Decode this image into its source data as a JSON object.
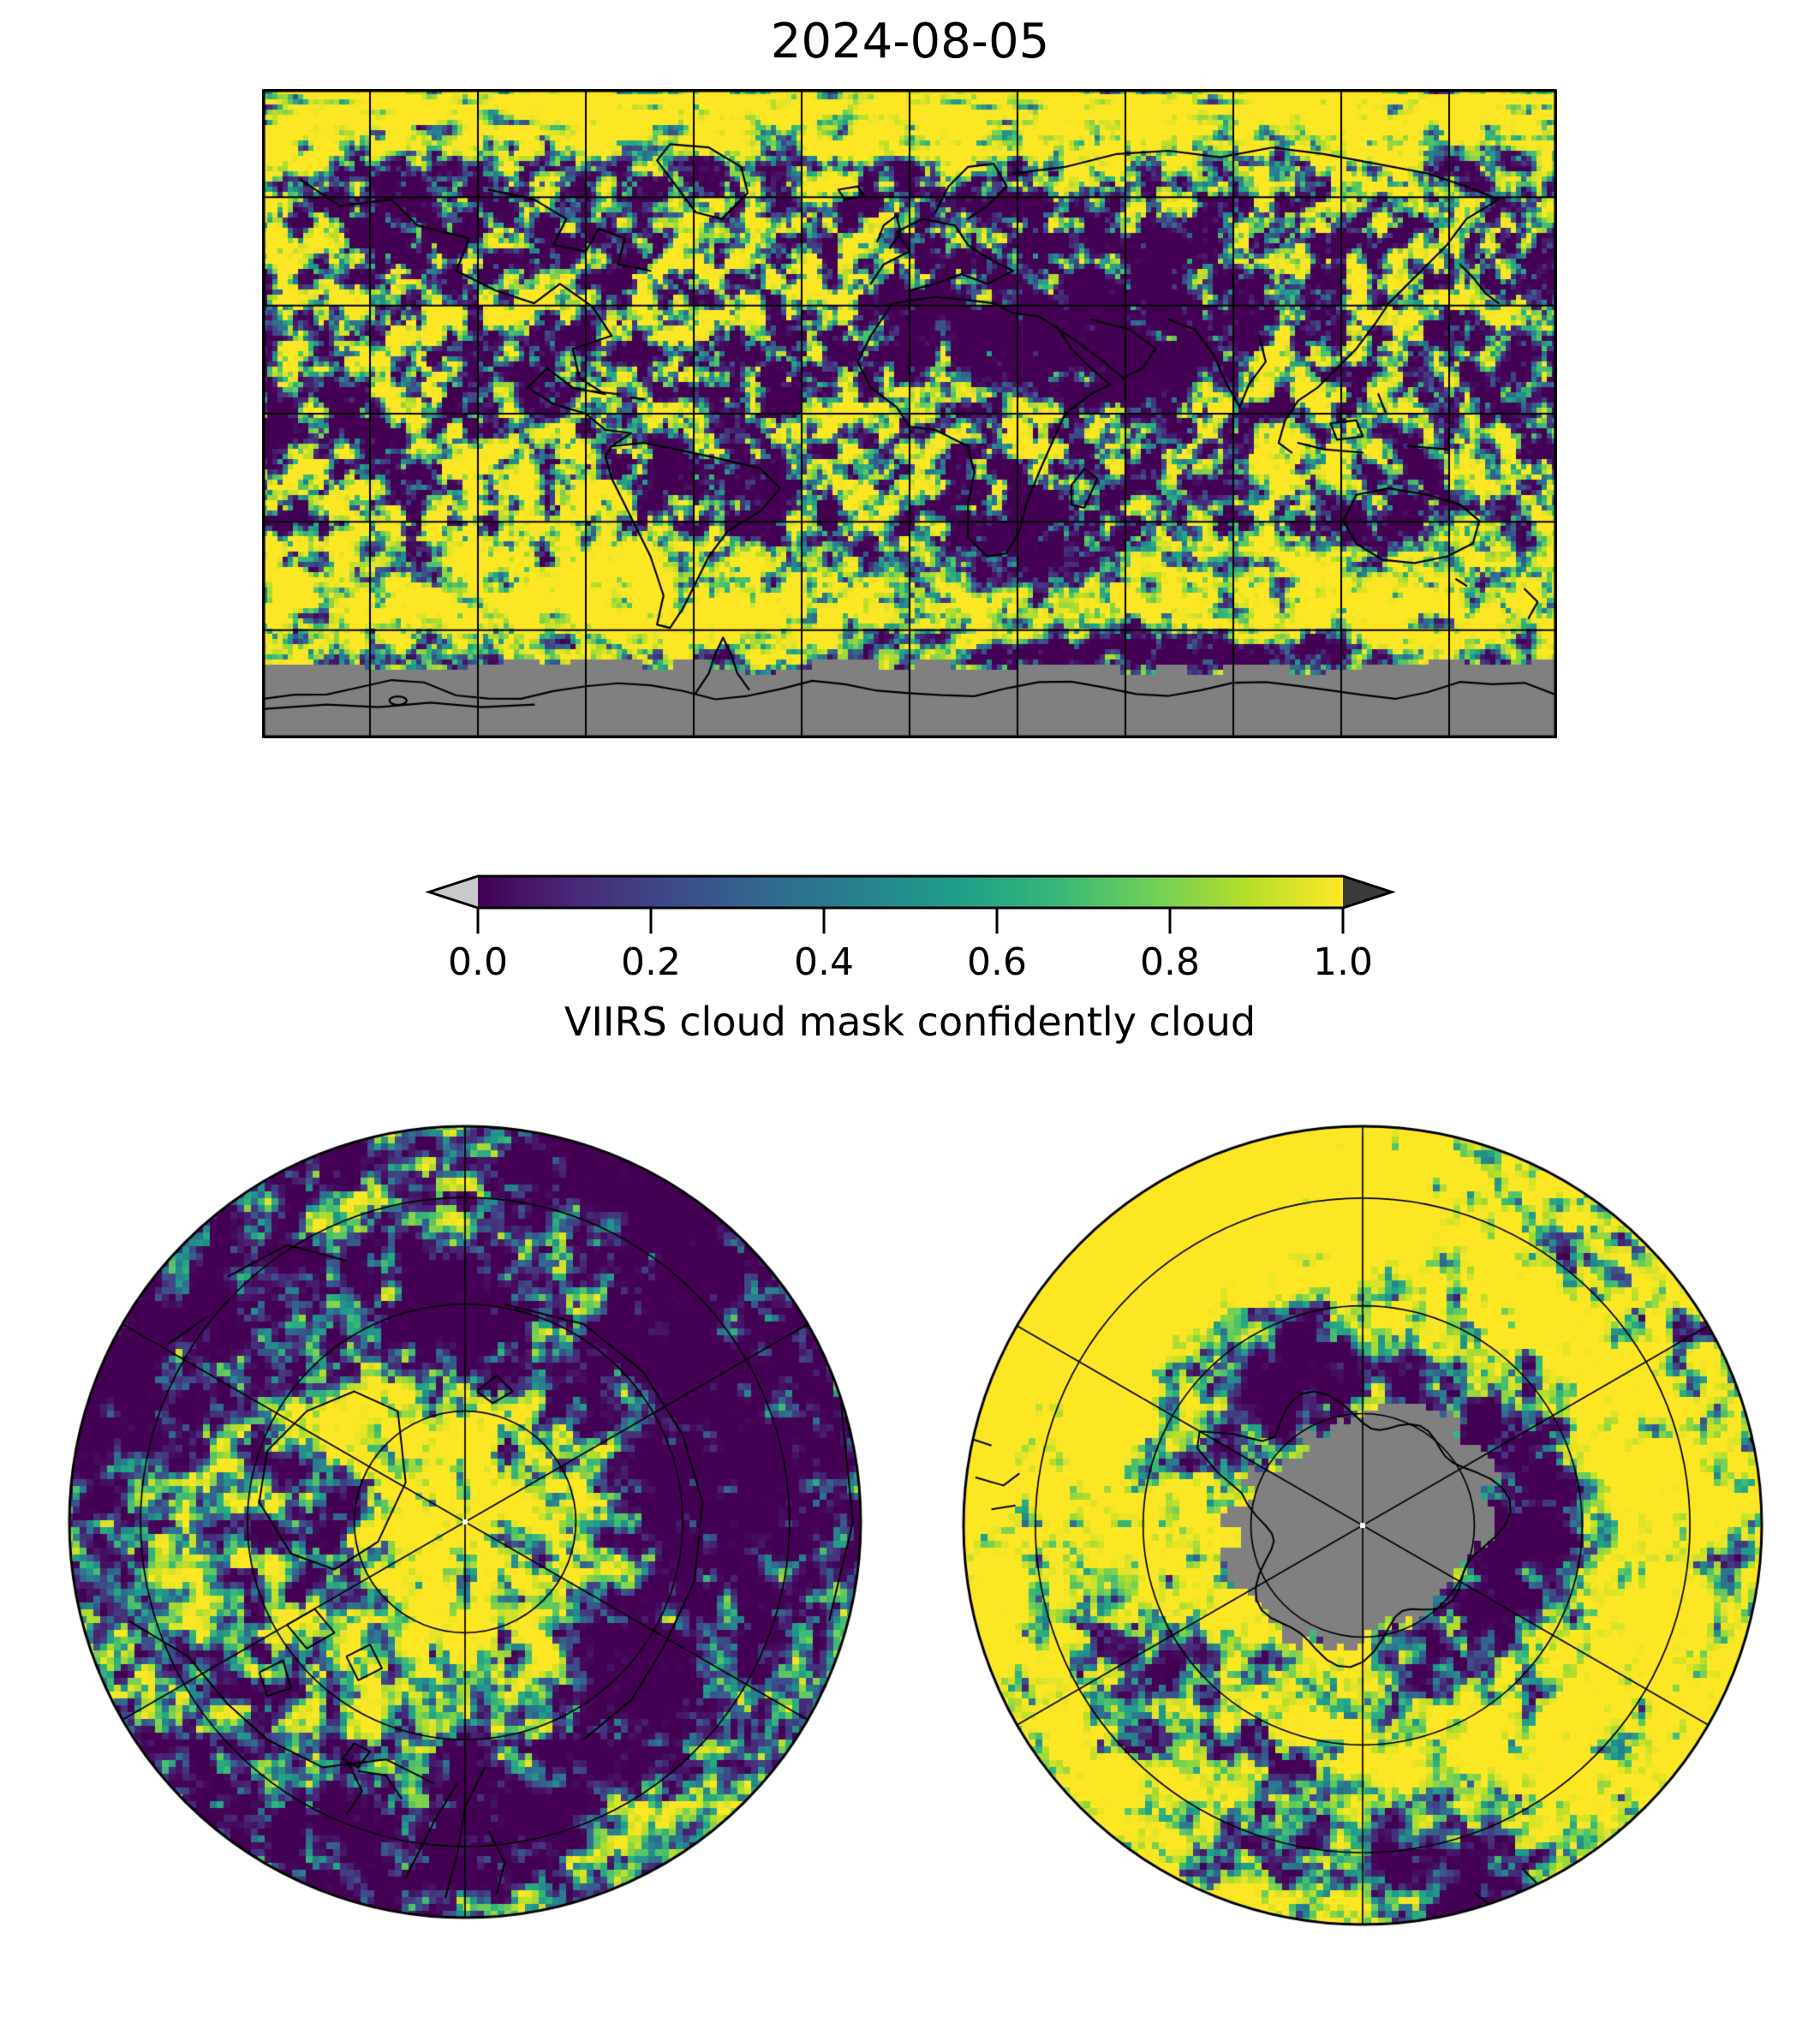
{
  "figure": {
    "title": "2024-08-05",
    "background_color": "#ffffff"
  },
  "colorbar": {
    "label": "VIIRS cloud mask confidently cloud",
    "tick_labels": [
      "0.0",
      "0.2",
      "0.4",
      "0.6",
      "0.8",
      "1.0"
    ],
    "range_min": 0.0,
    "range_max": 1.0,
    "colormap": "viridis",
    "extend": "both",
    "under_arrow_color": "#c9c9c9",
    "over_arrow_color": "#3b3b3b",
    "outline_color": "#000000",
    "viridis_stops": [
      "#440154",
      "#482878",
      "#3e4989",
      "#31688e",
      "#26828e",
      "#1f9e89",
      "#35b779",
      "#6ece58",
      "#b5de2b",
      "#fde725"
    ],
    "missing_data_color": "#808080"
  },
  "chart_data": {
    "type": "heatmap",
    "title": "2024-08-05",
    "variable": "VIIRS cloud mask confidently cloud",
    "value_range": [
      0,
      1
    ],
    "colorbar_ticks": [
      0.0,
      0.2,
      0.4,
      0.6,
      0.8,
      1.0
    ],
    "colormap": "viridis",
    "under_color": "light gray arrow (values < 0)",
    "over_color": "dark gray arrow (values > 1)",
    "missing_data": "gray (#808080)",
    "grid": true,
    "legend_position": "horizontal colorbar below global map",
    "panels": [
      {
        "name": "global-map",
        "projection": "equirectangular",
        "lon_range": [
          -180,
          180
        ],
        "lat_range": [
          -90,
          90
        ],
        "gridline_spacing_deg": 30,
        "coastlines": true,
        "notes": "cloud fraction raster; mostly confidently-cloudy (yellow ~1.0) over oceans and Arctic, clear (dark purple ~0.0) over Sahara/Arabia, southern Africa, Brazil and other land; gray no-data band south of ~70S with Antarctic coastline"
      },
      {
        "name": "north-polar",
        "projection": "polar azimuthal (North Pole)",
        "latitude_circles": 3,
        "meridian_spacing_deg": 60,
        "coastlines": true,
        "notes": "full data coverage; yellow cloudy pole with dark clear patches; white dot at pole"
      },
      {
        "name": "south-polar",
        "projection": "polar azimuthal (South Pole)",
        "latitude_circles": 3,
        "meridian_spacing_deg": 60,
        "coastlines": true,
        "notes": "mostly confidently cloudy (yellow); gray no-data region over Antarctica with black coastline; dark clear arc east of Antarctica; white dot at pole"
      }
    ]
  }
}
